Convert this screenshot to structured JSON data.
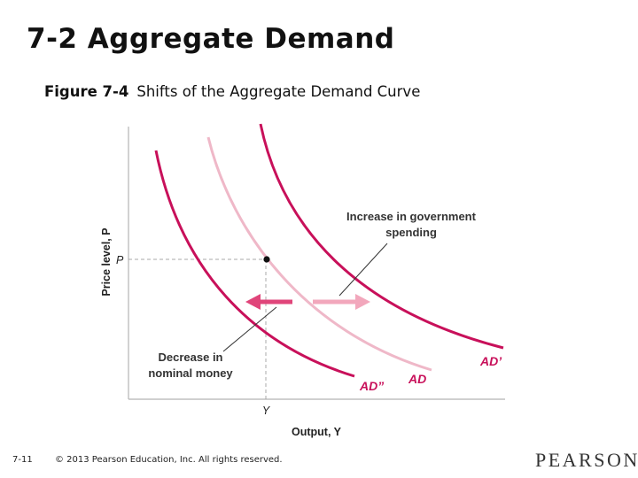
{
  "slide": {
    "title": "7-2 Aggregate Demand",
    "figure_number": "Figure 7-4",
    "figure_title": "Shifts of the Aggregate Demand Curve"
  },
  "diagram": {
    "y_axis_label": "Price level, P",
    "x_axis_label": "Output, Y",
    "p_tick": "P",
    "y_tick": "Y",
    "curves": {
      "ad": "AD",
      "ad_prime": "AD’",
      "ad_double_prime": "AD”"
    },
    "annotation_gov_line1": "Increase in government",
    "annotation_gov_line2": "spending",
    "annotation_money_line1": "Decrease in",
    "annotation_money_line2": "nominal money",
    "colors": {
      "ad": "#efb8c8",
      "ad_prime": "#c8105a",
      "ad_double_prime": "#c8105a",
      "arrow_left": "#e0457a",
      "arrow_right": "#f2a7bc",
      "axis": "#b5b5b5",
      "dashed": "#a8a8a8"
    }
  },
  "footer": {
    "page": "7-11",
    "copyright": "© 2013 Pearson Education, Inc. All rights reserved.",
    "logo": "PEARSON"
  }
}
